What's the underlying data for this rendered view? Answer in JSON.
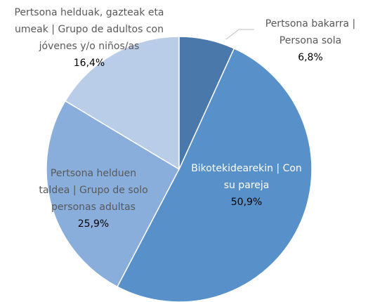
{
  "chart_data": {
    "type": "pie",
    "categories": [
      "Pertsona bakarra | Persona sola",
      "Bikotekidearekin | Con su pareja",
      "Pertsona helduen taldea | Grupo de solo personas adultas",
      "Pertsona helduak, gazteak eta umeak | Grupo de adultos con jóvenes y/o niños/as"
    ],
    "values": [
      6.8,
      50.9,
      25.9,
      16.4
    ],
    "value_labels": [
      "6,8%",
      "50,9%",
      "25,9%",
      "16,4%"
    ],
    "colors": [
      "#4a78ab",
      "#5890ca",
      "#89aedc",
      "#b9cde9"
    ]
  }
}
